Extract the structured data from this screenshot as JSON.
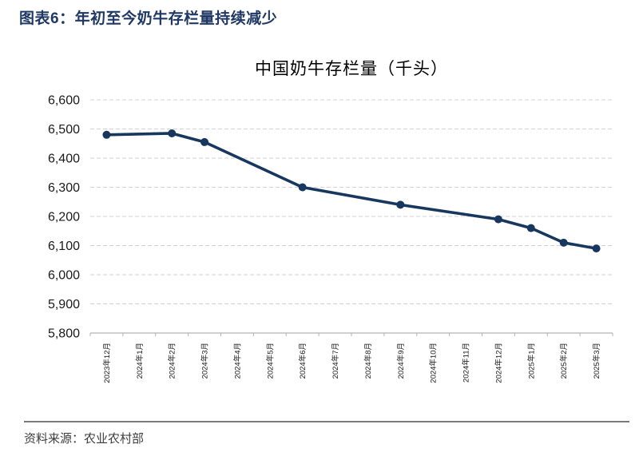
{
  "header": {
    "title": "图表6：年初至今奶牛存栏量持续减少"
  },
  "chart_data": {
    "type": "line",
    "title": "中国奶牛存栏量（千头）",
    "categories": [
      "2023年12月",
      "2024年1月",
      "2024年2月",
      "2024年3月",
      "2024年4月",
      "2024年5月",
      "2024年6月",
      "2024年7月",
      "2024年8月",
      "2024年9月",
      "2024年10月",
      "2024年11月",
      "2024年12月",
      "2025年1月",
      "2025年2月",
      "2025年3月"
    ],
    "series": [
      {
        "name": "中国奶牛存栏量",
        "points": [
          {
            "x": "2023年12月",
            "y": 6480
          },
          {
            "x": "2024年2月",
            "y": 6485
          },
          {
            "x": "2024年3月",
            "y": 6455
          },
          {
            "x": "2024年6月",
            "y": 6300
          },
          {
            "x": "2024年9月",
            "y": 6240
          },
          {
            "x": "2024年12月",
            "y": 6190
          },
          {
            "x": "2025年1月",
            "y": 6160
          },
          {
            "x": "2025年2月",
            "y": 6110
          },
          {
            "x": "2025年3月",
            "y": 6090
          }
        ]
      }
    ],
    "ylim": [
      5800,
      6600
    ],
    "ytick_step": 100,
    "ytick_labels": [
      "5,800",
      "5,900",
      "6,000",
      "6,100",
      "6,200",
      "6,300",
      "6,400",
      "6,500",
      "6,600"
    ],
    "grid": "horizontal-dashed",
    "legend": "none",
    "line_color": "#17375e",
    "marker": "circle",
    "grid_color": "#d2d2d2",
    "axis_color": "#b3b3b3",
    "tick_label_color": "#1a1a1a"
  },
  "footer": {
    "source": "资料来源：农业农村部"
  }
}
